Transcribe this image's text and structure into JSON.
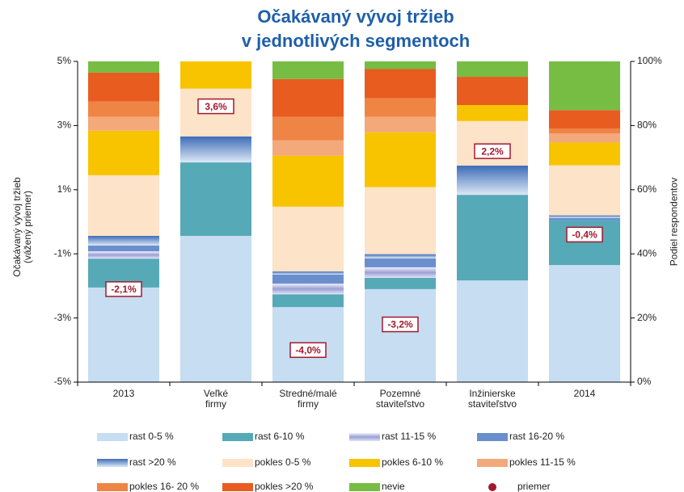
{
  "chart_data": {
    "type": "bar",
    "stacked": true,
    "title": "Očakávaný vývoj tržieb\nv jednotlivých segmentoch",
    "y_label": "Očakávaný vývoj tržieb\n(vážený priemer)",
    "y2_label": "Podiel respondentov",
    "categories": [
      "2013",
      "Veľké\nfirmy",
      "Stredné/malé\nfirmy",
      "Pozemné\nstaviteľstvo",
      "Inžinierske\nstaviteľstvo",
      "2014"
    ],
    "ylim": [
      -5,
      5
    ],
    "yticks": [
      {
        "value": -5,
        "label": "-5%"
      },
      {
        "value": -3,
        "label": "-3%"
      },
      {
        "value": -1,
        "label": "-1%"
      },
      {
        "value": 1,
        "label": "1%"
      },
      {
        "value": 3,
        "label": "3%"
      },
      {
        "value": 5,
        "label": "5%"
      }
    ],
    "y2lim": [
      0,
      100
    ],
    "y2ticks": [
      {
        "value": 0,
        "label": "0%"
      },
      {
        "value": 20,
        "label": "20%"
      },
      {
        "value": 40,
        "label": "40%"
      },
      {
        "value": 60,
        "label": "60%"
      },
      {
        "value": 80,
        "label": "80%"
      },
      {
        "value": 100,
        "label": "100%"
      }
    ],
    "series": [
      {
        "name": "rast 0-5 %",
        "color": "#c6ddf2",
        "axis": "y2",
        "values": [
          29.5,
          45.6,
          23.4,
          29,
          31.7,
          36.5
        ]
      },
      {
        "name": "rast 6-10 %",
        "color": "#56a9b7",
        "axis": "y2",
        "values": [
          9,
          22.9,
          4,
          3.5,
          26.7,
          13.9
        ]
      },
      {
        "name": "rast 11-15 %",
        "color": "#b4b8e4",
        "axis": "y2",
        "values": [
          2.3,
          0,
          3.3,
          3.3,
          0,
          0
        ]
      },
      {
        "name": "rast 16-20 %",
        "color": "#6a8fcc",
        "axis": "y2",
        "values": [
          1.8,
          0,
          2.8,
          2.8,
          0,
          0.8
        ]
      },
      {
        "name": "rast >20 %",
        "color": "#5b84c6",
        "axis": "y2",
        "values": [
          3,
          8.1,
          1,
          1.3,
          9.1,
          0.8
        ]
      },
      {
        "name": "pokles 0-5 %",
        "color": "#fde3c8",
        "axis": "y2",
        "values": [
          18.9,
          14.9,
          20.2,
          20.9,
          13.9,
          15.6
        ]
      },
      {
        "name": "pokles 6-10 %",
        "color": "#f8c400",
        "axis": "y2",
        "values": [
          13.9,
          8.5,
          15.9,
          17.1,
          5,
          7.1
        ]
      },
      {
        "name": "pokles 11-15 %",
        "color": "#f4a97a",
        "axis": "y2",
        "values": [
          4.3,
          0,
          4.8,
          4.8,
          0,
          2.8
        ]
      },
      {
        "name": "pokles 16- 20 %",
        "color": "#ef8545",
        "axis": "y2",
        "values": [
          4.8,
          0,
          7.3,
          5.8,
          0,
          1.5
        ]
      },
      {
        "name": "pokles >20 %",
        "color": "#e85c20",
        "axis": "y2",
        "values": [
          9,
          0,
          11.8,
          9.1,
          8.8,
          5.8
        ]
      },
      {
        "name": "nevie",
        "color": "#77bc43",
        "axis": "y2",
        "values": [
          3.5,
          0,
          5.5,
          2.4,
          4.8,
          15.2
        ]
      },
      {
        "name": "priemer",
        "color": "#a3192e",
        "values": [
          -2.1,
          3.6,
          -4.0,
          -3.2,
          2.2,
          -0.4
        ],
        "value_labels": [
          "-2,1%",
          "3,6%",
          "-4,0%",
          "-3,2%",
          "2,2%",
          "-0,4%"
        ]
      }
    ]
  }
}
